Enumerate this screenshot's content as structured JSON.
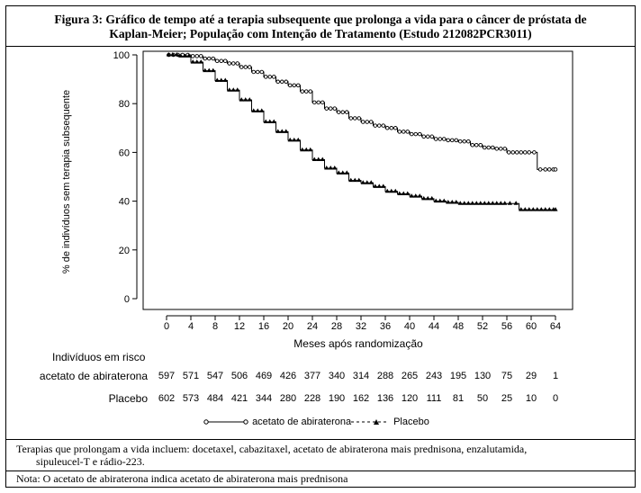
{
  "figure": {
    "title_line1": "Figura 3: Gráfico de tempo até a terapia subsequente que prolonga a vida para o câncer de próstata de",
    "title_line2": "Kaplan-Meier; População com Intenção de Tratamento (Estudo 212082PCR3011)"
  },
  "chart_data": {
    "type": "line",
    "title": "",
    "xlabel": "Meses após randomização",
    "ylabel": "% de indivíduos sem terapia subsequente",
    "xlim": [
      0,
      64
    ],
    "ylim": [
      0,
      100
    ],
    "x_ticks": [
      "0",
      "4",
      "8",
      "12",
      "16",
      "20",
      "24",
      "28",
      "32",
      "36",
      "40",
      "44",
      "48",
      "52",
      "56",
      "60",
      "64"
    ],
    "y_ticks": [
      "0",
      "20",
      "40",
      "60",
      "80",
      "100"
    ],
    "grid": false,
    "legend_position": "bottom-center",
    "series": [
      {
        "name": "acetato de abiraterona",
        "style": "solid",
        "marker": "circle",
        "x": [
          0,
          3,
          4,
          6,
          8,
          10,
          12,
          14,
          16,
          18,
          20,
          22,
          24,
          26,
          28,
          30,
          32,
          34,
          36,
          38,
          40,
          42,
          44,
          46,
          48,
          50,
          52,
          54,
          56,
          58,
          60,
          61,
          62,
          64
        ],
        "y": [
          100,
          100,
          99.5,
          98.5,
          97.5,
          96.5,
          95,
          93,
          91,
          89,
          87.5,
          85,
          80.5,
          78,
          76.5,
          74,
          72.5,
          71,
          70,
          68.5,
          67.5,
          66.5,
          65.5,
          65,
          64.5,
          63,
          62,
          61.5,
          60,
          60,
          60,
          53,
          53,
          53
        ]
      },
      {
        "name": "Placebo",
        "style": "dashed",
        "marker": "triangle",
        "x": [
          0,
          2,
          4,
          6,
          8,
          10,
          12,
          14,
          16,
          18,
          20,
          22,
          24,
          26,
          28,
          30,
          32,
          34,
          36,
          38,
          40,
          42,
          44,
          46,
          48,
          50,
          52,
          54,
          56,
          57,
          58,
          60,
          62,
          64
        ],
        "y": [
          100,
          99.5,
          97,
          93.5,
          89.5,
          85.5,
          81.5,
          77,
          72.5,
          68.5,
          65,
          61,
          57,
          53.5,
          51.5,
          48.5,
          47.5,
          46,
          44,
          43,
          42,
          41,
          40,
          39.5,
          39,
          39,
          39,
          39,
          39,
          39,
          36.5,
          36.5,
          36.5,
          36.5
        ]
      }
    ]
  },
  "at_risk": {
    "title": "Indivíduos em risco",
    "rows": [
      {
        "label": "acetato de abiraterona",
        "values": [
          "597",
          "571",
          "547",
          "506",
          "469",
          "426",
          "377",
          "340",
          "314",
          "288",
          "265",
          "243",
          "195",
          "130",
          "75",
          "29",
          "1"
        ]
      },
      {
        "label": "Placebo",
        "values": [
          "602",
          "573",
          "484",
          "421",
          "344",
          "280",
          "228",
          "190",
          "162",
          "136",
          "120",
          "111",
          "81",
          "50",
          "25",
          "10",
          "0"
        ]
      }
    ]
  },
  "legend": {
    "abiraterone_label": "acetato de abiraterona",
    "placebo_label": "Placebo"
  },
  "footnotes": {
    "line1": "Terapias que prolongam a vida incluem: docetaxel, cabazitaxel, acetato de abiraterona mais prednisona, enzalutamida,",
    "line2": "sipuleucel-T e rádio-223.",
    "note": "Nota: O acetato de abiraterona indica acetato de abiraterona mais prednisona"
  }
}
